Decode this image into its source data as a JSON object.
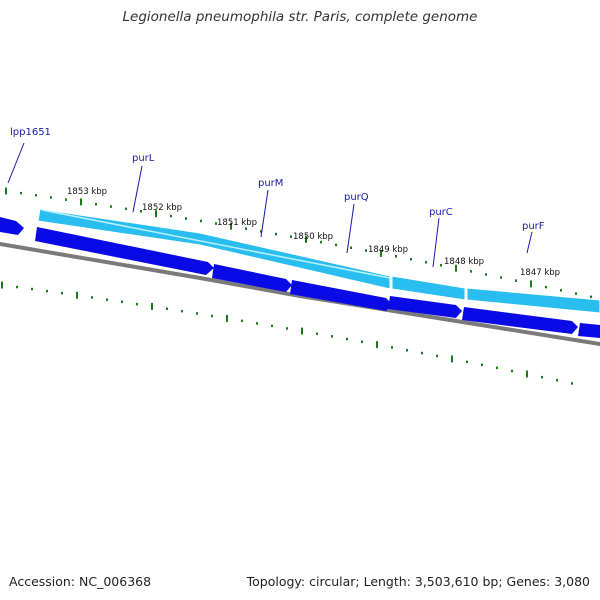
{
  "title": "Legionella pneumophila str. Paris, complete genome",
  "accession": "Accession: NC_006368",
  "summary": "Topology: circular; Length: 3,503,610 bp; Genes: 3,080",
  "colors": {
    "forward_gene": "#0a0ae6",
    "reverse_gene": "#29bdf0",
    "backbone": "#7a7a7a",
    "tick": "#1c7a1c",
    "gene_label": "#1a1aa6"
  },
  "scale_labels": [
    "1853 kbp",
    "1852 kbp",
    "1851 kbp",
    "1850 kbp",
    "1849 kbp",
    "1848 kbp",
    "1847 kbp"
  ],
  "gene_labels": [
    "lpp1651",
    "purL",
    "purM",
    "purQ",
    "purC",
    "purF"
  ]
}
